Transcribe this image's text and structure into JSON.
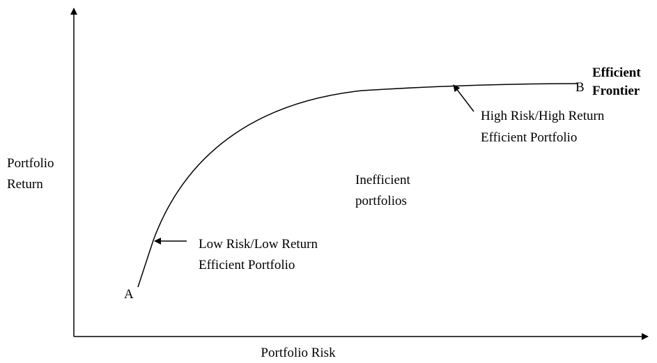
{
  "axes": {
    "y_label": [
      "Portfolio",
      "Return"
    ],
    "x_label": "Portfolio Risk"
  },
  "points": {
    "a": "A",
    "b": "B"
  },
  "labels": {
    "frontier": [
      "Efficient",
      "Frontier"
    ],
    "high": [
      "High Risk/High Return",
      "Efficient Portfolio"
    ],
    "inefficient": [
      "Inefficient",
      "portfolios"
    ],
    "low": [
      "Low Risk/Low Return",
      "Efficient Portfolio"
    ]
  }
}
